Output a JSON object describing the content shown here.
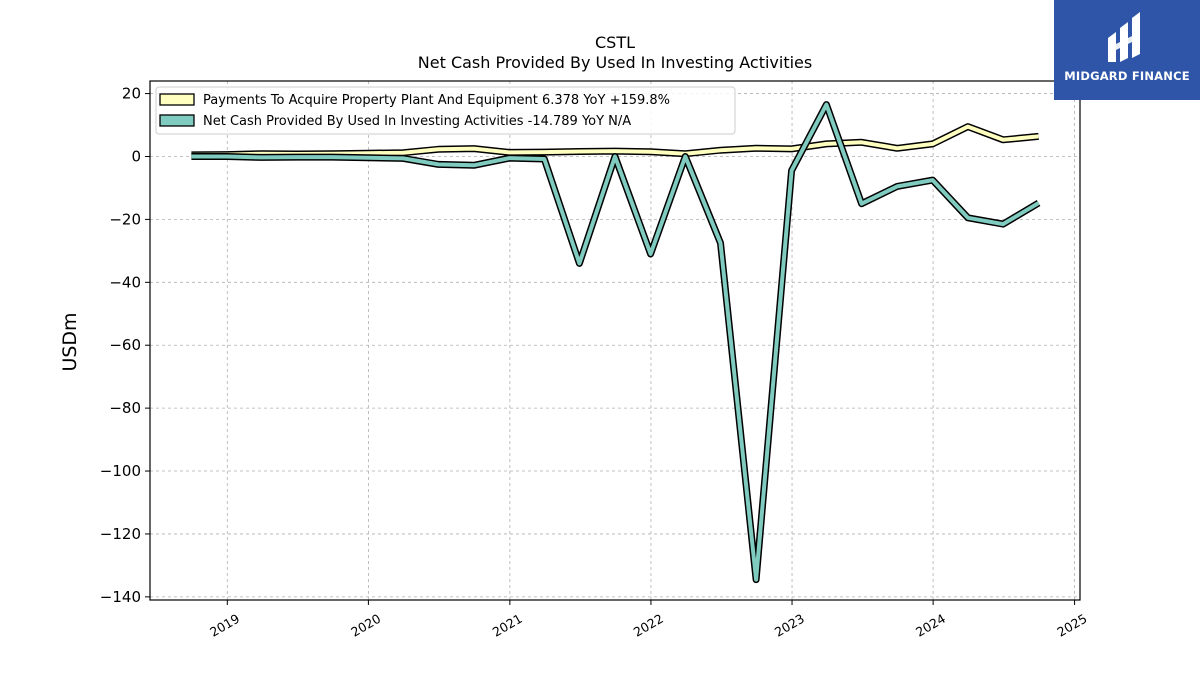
{
  "logo": {
    "text": "MIDGARD FINANCE",
    "icon": "midgard-logo-icon",
    "bg_color": "#2e55a8"
  },
  "chart_data": {
    "type": "line",
    "title": "CSTL",
    "subtitle": "Net Cash Provided By Used In Investing Activities",
    "ylabel": "USDm",
    "xlabel": "",
    "ylim": [
      -141,
      24
    ],
    "xlim": [
      "2018-06-15",
      "2025-01-15"
    ],
    "yticks": [
      20,
      0,
      -20,
      -40,
      -60,
      -80,
      -100,
      -120,
      -140
    ],
    "ytick_labels": [
      "20",
      "0",
      "−20",
      "−40",
      "−60",
      "−80",
      "−100",
      "−120",
      "−140"
    ],
    "xticks": [
      "2019-01-01",
      "2020-01-01",
      "2021-01-01",
      "2022-01-01",
      "2023-01-01",
      "2024-01-01",
      "2025-01-01"
    ],
    "xtick_labels": [
      "2019",
      "2020",
      "2021",
      "2022",
      "2023",
      "2024",
      "2025"
    ],
    "grid": true,
    "legend_position": "top-left",
    "series": [
      {
        "name": "Payments To Acquire Property Plant And Equipment",
        "legend_label": "Payments To Acquire Property Plant And Equipment  6.378 YoY +159.8%",
        "color": "#ffffc0",
        "x": [
          "2018-09-30",
          "2018-12-31",
          "2019-03-31",
          "2019-06-30",
          "2019-09-30",
          "2019-12-31",
          "2020-03-31",
          "2020-06-30",
          "2020-09-30",
          "2020-12-31",
          "2021-03-31",
          "2021-06-30",
          "2021-09-30",
          "2021-12-31",
          "2022-03-31",
          "2022-06-30",
          "2022-09-30",
          "2022-12-31",
          "2023-03-31",
          "2023-06-30",
          "2023-09-30",
          "2023-12-31",
          "2024-03-31",
          "2024-06-30",
          "2024-09-30"
        ],
        "values": [
          0.5,
          0.6,
          0.9,
          0.8,
          0.9,
          1.0,
          1.2,
          2.3,
          2.5,
          1.3,
          1.4,
          1.6,
          1.7,
          1.5,
          0.9,
          2.0,
          2.6,
          2.4,
          4.0,
          4.5,
          2.6,
          4.0,
          9.5,
          5.3,
          6.4
        ]
      },
      {
        "name": "Net Cash Provided By Used In Investing Activities",
        "legend_label": "Net Cash Provided By Used In Investing Activities  -14.789 YoY N/A",
        "color": "#80cbbf",
        "x": [
          "2018-09-30",
          "2018-12-31",
          "2019-03-31",
          "2019-06-30",
          "2019-09-30",
          "2019-12-31",
          "2020-03-31",
          "2020-06-30",
          "2020-09-30",
          "2020-12-31",
          "2021-03-31",
          "2021-06-30",
          "2021-09-30",
          "2021-12-31",
          "2022-03-31",
          "2022-06-30",
          "2022-09-30",
          "2022-12-31",
          "2023-03-31",
          "2023-06-30",
          "2023-09-30",
          "2023-12-31",
          "2024-03-31",
          "2024-06-30",
          "2024-09-30"
        ],
        "values": [
          0.0,
          0.0,
          -0.3,
          -0.2,
          -0.2,
          -0.4,
          -0.6,
          -2.5,
          -2.8,
          -0.5,
          -0.8,
          -34.0,
          0.0,
          -31.0,
          0.0,
          -27.5,
          -134.5,
          -4.5,
          16.5,
          -15.0,
          -9.5,
          -7.5,
          -19.5,
          -21.5,
          -14.8
        ]
      }
    ]
  }
}
